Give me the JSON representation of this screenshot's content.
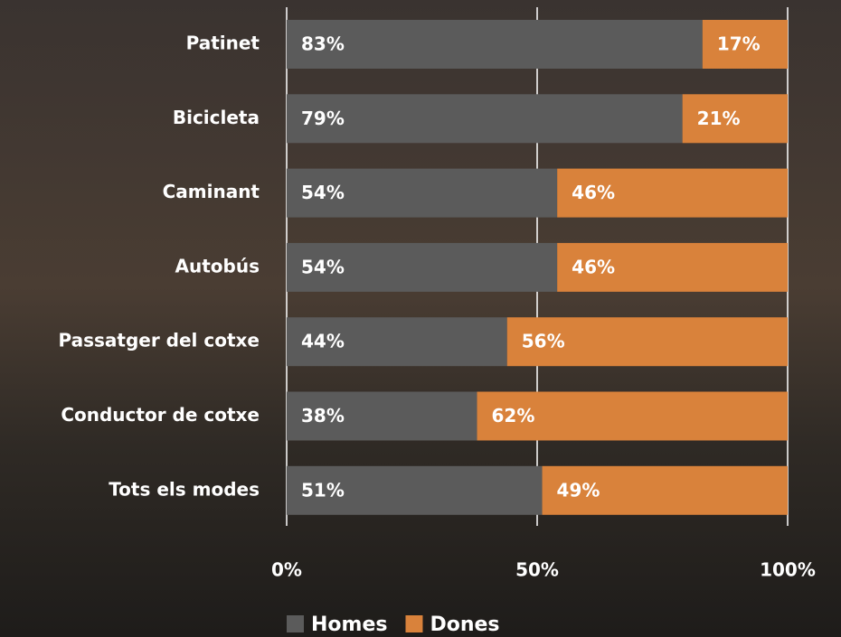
{
  "chart_data": {
    "type": "stacked-bar-horizontal",
    "categories": [
      "Patinet",
      "Bicicleta",
      "Caminant",
      "Autobús",
      "Passatger del cotxe",
      "Conductor de cotxe",
      "Tots els modes"
    ],
    "series": [
      {
        "name": "Homes",
        "color": "#5b5b5b",
        "values": [
          83,
          79,
          54,
          54,
          44,
          38,
          51
        ],
        "value_labels": [
          "83%",
          "79%",
          "54%",
          "54%",
          "44%",
          "38%",
          "51%"
        ]
      },
      {
        "name": "Dones",
        "color": "#d9823b",
        "values": [
          17,
          21,
          46,
          46,
          56,
          62,
          49
        ],
        "value_labels": [
          "17%",
          "21%",
          "46%",
          "46%",
          "56%",
          "62%",
          "49%"
        ]
      }
    ],
    "xlim": [
      0,
      100
    ],
    "xticks": [
      {
        "value": 0,
        "label": "0%"
      },
      {
        "value": 50,
        "label": "50%"
      },
      {
        "value": 100,
        "label": "100%"
      }
    ],
    "grid": true
  }
}
